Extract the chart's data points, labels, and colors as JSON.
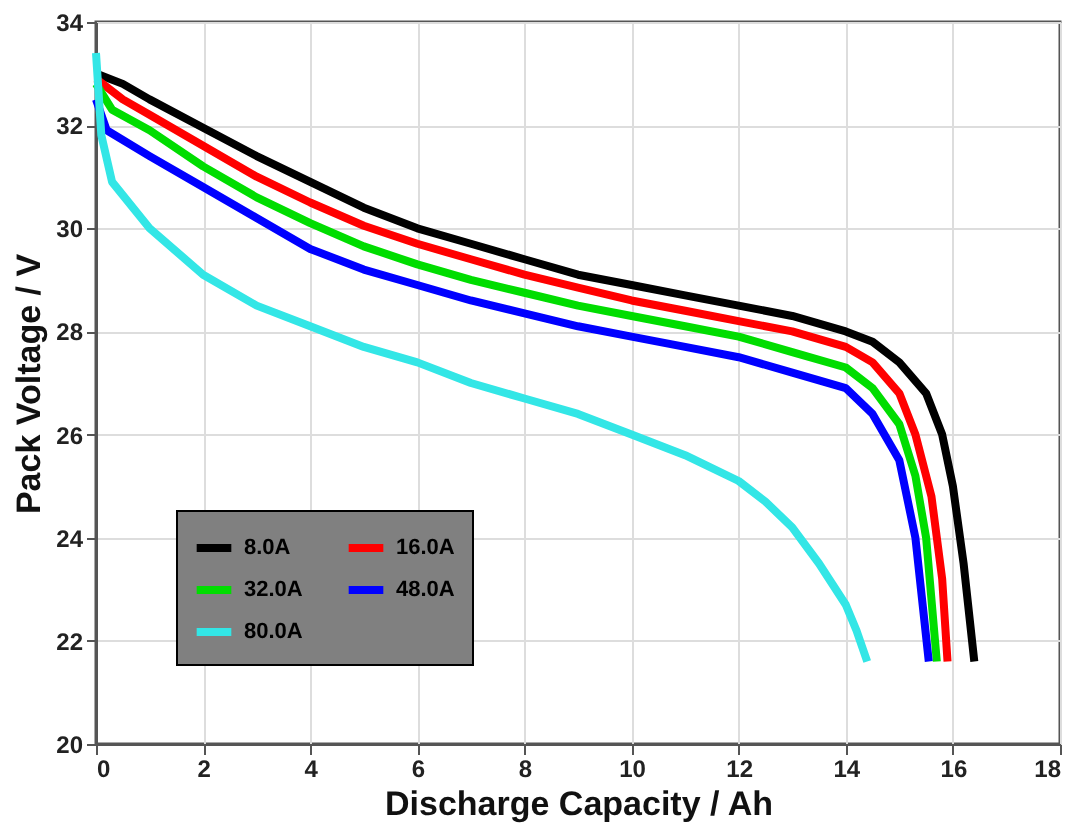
{
  "chart_data": {
    "type": "line",
    "xlabel": "Discharge Capacity / Ah",
    "ylabel": "Pack Voltage / V",
    "xlim": [
      0,
      18
    ],
    "xticks": [
      0,
      2,
      4,
      6,
      8,
      10,
      12,
      14,
      16,
      18
    ],
    "ylim": [
      20,
      34
    ],
    "yticks": [
      20,
      22,
      24,
      26,
      28,
      30,
      32,
      34
    ],
    "grid": true,
    "legend": "bottom left",
    "marker": "none",
    "line_style": "solid",
    "series": [
      {
        "name": "8.0A",
        "color": "#000000",
        "x": [
          0,
          0.5,
          1,
          2,
          3,
          4,
          5,
          6,
          7,
          8,
          9,
          10,
          11,
          12,
          13,
          14,
          14.5,
          15,
          15.5,
          15.8,
          16,
          16.2,
          16.4
        ],
        "values": [
          33.0,
          32.8,
          32.5,
          31.95,
          31.4,
          30.9,
          30.4,
          30.0,
          29.7,
          29.4,
          29.1,
          28.9,
          28.7,
          28.5,
          28.3,
          28.0,
          27.8,
          27.4,
          26.8,
          26.0,
          25.0,
          23.5,
          21.6
        ]
      },
      {
        "name": "16.0A",
        "color": "#ff0000",
        "x": [
          0,
          0.5,
          1,
          2,
          3,
          4,
          5,
          6,
          7,
          8,
          9,
          10,
          11,
          12,
          13,
          14,
          14.5,
          15,
          15.3,
          15.6,
          15.8,
          15.9
        ],
        "values": [
          32.9,
          32.5,
          32.2,
          31.6,
          31.0,
          30.5,
          30.05,
          29.7,
          29.4,
          29.1,
          28.85,
          28.6,
          28.4,
          28.2,
          28.0,
          27.7,
          27.4,
          26.8,
          26.0,
          24.8,
          23.2,
          21.6
        ]
      },
      {
        "name": "32.0A",
        "color": "#00dd00",
        "x": [
          0,
          0.3,
          1,
          2,
          3,
          4,
          5,
          6,
          7,
          8,
          9,
          10,
          11,
          12,
          13,
          14,
          14.5,
          15,
          15.3,
          15.5,
          15.7
        ],
        "values": [
          32.8,
          32.3,
          31.9,
          31.2,
          30.6,
          30.1,
          29.65,
          29.3,
          29.0,
          28.75,
          28.5,
          28.3,
          28.1,
          27.9,
          27.6,
          27.3,
          26.9,
          26.2,
          25.2,
          24.0,
          21.6
        ]
      },
      {
        "name": "48.0A",
        "color": "#0000ff",
        "x": [
          0,
          0.2,
          1,
          2,
          3,
          4,
          5,
          6,
          7,
          8,
          9,
          10,
          11,
          12,
          13,
          14,
          14.5,
          15,
          15.3,
          15.55
        ],
        "values": [
          32.5,
          31.9,
          31.4,
          30.8,
          30.2,
          29.6,
          29.2,
          28.9,
          28.6,
          28.35,
          28.1,
          27.9,
          27.7,
          27.5,
          27.2,
          26.9,
          26.4,
          25.5,
          24.0,
          21.6
        ]
      },
      {
        "name": "80.0A",
        "color": "#33e6e6",
        "x": [
          0,
          0.1,
          0.3,
          1,
          2,
          3,
          4,
          5,
          6,
          7,
          8,
          9,
          10,
          11,
          12,
          12.5,
          13,
          13.5,
          14,
          14.2,
          14.4
        ],
        "values": [
          33.4,
          31.8,
          30.9,
          30.0,
          29.1,
          28.5,
          28.1,
          27.7,
          27.4,
          27.0,
          26.7,
          26.4,
          26.0,
          25.6,
          25.1,
          24.7,
          24.2,
          23.5,
          22.7,
          22.2,
          21.6
        ]
      }
    ]
  }
}
